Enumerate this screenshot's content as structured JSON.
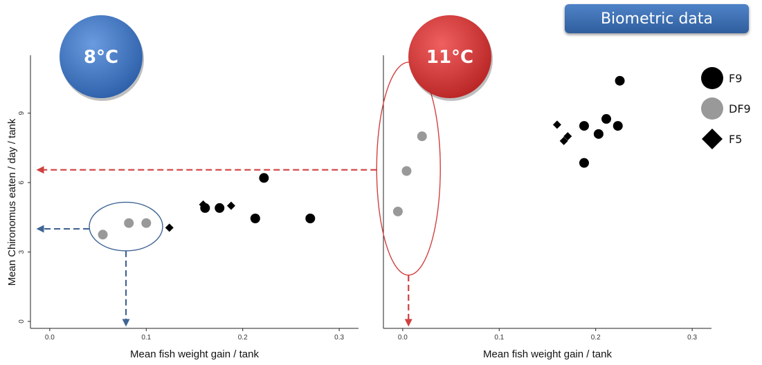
{
  "banner": "Biometric data",
  "colors": {
    "F9": "#000000",
    "DF9": "#999999",
    "F5": "#000000",
    "left_badge": "#3a6fb8",
    "right_badge": "#d63a3a",
    "left_arrow": "#3f6494",
    "right_arrow": "#d04040"
  },
  "legend": [
    {
      "key": "F9",
      "label": "F9",
      "marker": "circle"
    },
    {
      "key": "DF9",
      "label": "DF9",
      "marker": "circle"
    },
    {
      "key": "F5",
      "label": "F5",
      "marker": "diamond"
    }
  ],
  "chart_data": [
    {
      "type": "scatter",
      "badge": "8°C",
      "xlabel": "Mean fish weight gain / tank",
      "ylabel": "Mean Chironomus eaten / day / tank",
      "xlim": [
        -0.02,
        0.32
      ],
      "ylim": [
        -0.3,
        11.5
      ],
      "xticks": [
        "0.0",
        "0.1",
        "0.2",
        "0.3"
      ],
      "yticks": [
        "0",
        "3",
        "6",
        "9"
      ],
      "grid": false,
      "legend_position": "right",
      "series": [
        {
          "name": "F9",
          "points": [
            [
              0.161,
              4.9
            ],
            [
              0.176,
              4.9
            ],
            [
              0.213,
              4.45
            ],
            [
              0.222,
              6.2
            ],
            [
              0.27,
              4.45
            ]
          ]
        },
        {
          "name": "DF9",
          "points": [
            [
              0.055,
              3.75
            ],
            [
              0.082,
              4.25
            ],
            [
              0.1,
              4.25
            ]
          ]
        },
        {
          "name": "F5",
          "points": [
            [
              0.159,
              5.05
            ],
            [
              0.188,
              5.0
            ],
            [
              0.124,
              4.05
            ]
          ]
        }
      ],
      "highlight_ellipse": {
        "x": 0.079,
        "y": 4.1,
        "rx": 0.038,
        "ry": 1.05
      },
      "arrows": [
        {
          "to_axis": "y",
          "value": 4.0
        },
        {
          "to_axis": "x",
          "value": 0.079
        }
      ]
    },
    {
      "type": "scatter",
      "badge": "11°C",
      "xlabel": "Mean fish weight gain / tank",
      "ylabel": "",
      "xlim": [
        -0.02,
        0.32
      ],
      "ylim": [
        -0.3,
        11.5
      ],
      "xticks": [
        "0.0",
        "0.1",
        "0.2",
        "0.3"
      ],
      "yticks": [],
      "grid": false,
      "series": [
        {
          "name": "F9",
          "points": [
            [
              0.188,
              8.45
            ],
            [
              0.188,
              6.85
            ],
            [
              0.203,
              8.1
            ],
            [
              0.211,
              8.75
            ],
            [
              0.223,
              8.45
            ],
            [
              0.225,
              10.4
            ]
          ]
        },
        {
          "name": "DF9",
          "points": [
            [
              -0.005,
              4.75
            ],
            [
              0.004,
              6.5
            ],
            [
              0.02,
              8.0
            ]
          ]
        },
        {
          "name": "F5",
          "points": [
            [
              0.16,
              8.5
            ],
            [
              0.167,
              7.8
            ],
            [
              0.171,
              8.0
            ]
          ]
        }
      ],
      "highlight_ellipse": {
        "x": 0.006,
        "y": 6.6,
        "rx": 0.033,
        "ry": 4.6
      },
      "arrows": [
        {
          "to_axis": "x",
          "value": 0.006
        }
      ],
      "cross_arrow": {
        "value": 6.55
      }
    }
  ]
}
